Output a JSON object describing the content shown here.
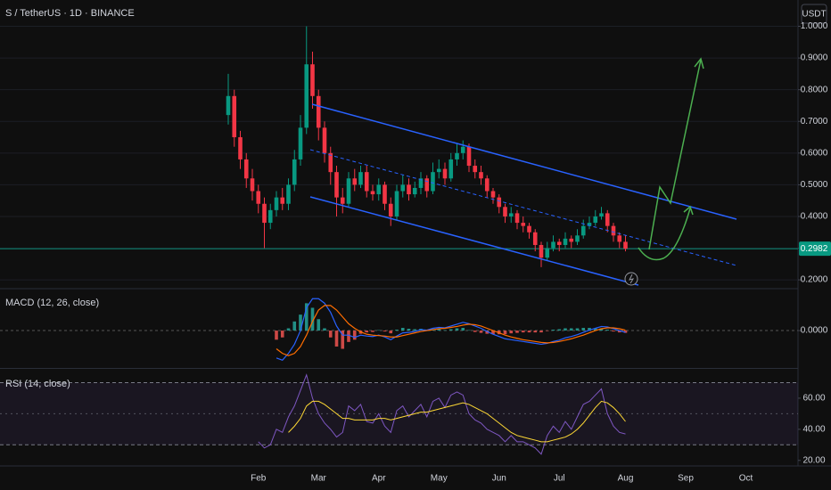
{
  "chart_data": [
    {
      "type": "candlestick",
      "title": "S / TetherUS · 1D · BINANCE",
      "currency": "USDT",
      "categories": [
        null,
        null,
        null,
        null,
        null,
        "Feb",
        null,
        null,
        null,
        null,
        null,
        null,
        null,
        null,
        null,
        "Mar",
        null,
        null,
        null,
        null,
        null,
        null,
        null,
        null,
        null,
        "Apr",
        null,
        null,
        null,
        null,
        null,
        null,
        null,
        null,
        null,
        "May",
        null,
        null,
        null,
        null,
        null,
        null,
        null,
        null,
        null,
        "Jun",
        null,
        null,
        null,
        null,
        null,
        null,
        null,
        null,
        null,
        "Jul",
        null,
        null,
        null,
        null,
        null,
        null,
        null,
        null,
        null,
        null,
        "Aug",
        null,
        null,
        null,
        null,
        null,
        null,
        null,
        null,
        null,
        "Sep",
        null,
        null,
        null,
        null,
        null,
        null,
        null,
        null,
        null,
        "Oct",
        null,
        null
      ],
      "open": [
        0.72,
        0.78,
        0.65,
        0.58,
        0.52,
        0.48,
        0.44,
        0.38,
        0.42,
        0.46,
        0.44,
        0.5,
        0.58,
        0.68,
        0.88,
        0.78,
        0.68,
        0.6,
        0.54,
        0.46,
        0.44,
        0.52,
        0.5,
        0.54,
        0.48,
        0.47,
        0.5,
        0.44,
        0.4,
        0.48,
        0.5,
        0.47,
        0.49,
        0.52,
        0.48,
        0.54,
        0.55,
        0.52,
        0.58,
        0.6,
        0.62,
        0.56,
        0.54,
        0.52,
        0.48,
        0.46,
        0.43,
        0.4,
        0.41,
        0.38,
        0.37,
        0.35,
        0.31,
        0.27,
        0.3,
        0.32,
        0.31,
        0.33,
        0.32,
        0.34,
        0.37,
        0.38,
        0.4,
        0.41,
        0.37,
        0.34,
        0.32,
        null,
        null,
        null,
        null,
        null,
        null,
        null,
        null,
        null,
        null,
        null,
        null,
        null,
        null,
        null,
        null,
        null,
        null,
        null,
        null,
        null,
        null
      ],
      "high": [
        0.85,
        0.8,
        0.67,
        0.6,
        0.55,
        0.5,
        0.46,
        0.44,
        0.48,
        0.49,
        0.52,
        0.61,
        0.72,
        1.0,
        0.92,
        0.8,
        0.7,
        0.62,
        0.56,
        0.49,
        0.54,
        0.55,
        0.56,
        0.56,
        0.5,
        0.52,
        0.51,
        0.46,
        0.5,
        0.53,
        0.52,
        0.51,
        0.54,
        0.53,
        0.57,
        0.58,
        0.57,
        0.6,
        0.63,
        0.64,
        0.63,
        0.58,
        0.56,
        0.53,
        0.49,
        0.47,
        0.44,
        0.43,
        0.42,
        0.4,
        0.38,
        0.36,
        0.32,
        0.32,
        0.34,
        0.33,
        0.35,
        0.34,
        0.36,
        0.39,
        0.4,
        0.42,
        0.43,
        0.42,
        0.38,
        0.35,
        0.34,
        null,
        null,
        null,
        null,
        null,
        null,
        null,
        null,
        null,
        null,
        null,
        null,
        null,
        null,
        null,
        null,
        null,
        null,
        null,
        null,
        null,
        null
      ],
      "low": [
        0.69,
        0.62,
        0.55,
        0.49,
        0.45,
        0.41,
        0.3,
        0.36,
        0.4,
        0.42,
        0.42,
        0.48,
        0.56,
        0.66,
        0.74,
        0.64,
        0.57,
        0.5,
        0.4,
        0.41,
        0.43,
        0.48,
        0.49,
        0.46,
        0.45,
        0.45,
        0.42,
        0.37,
        0.39,
        0.46,
        0.45,
        0.46,
        0.47,
        0.46,
        0.47,
        0.52,
        0.5,
        0.51,
        0.56,
        0.58,
        0.54,
        0.52,
        0.5,
        0.46,
        0.44,
        0.41,
        0.38,
        0.38,
        0.36,
        0.35,
        0.33,
        0.29,
        0.24,
        0.26,
        0.29,
        0.29,
        0.3,
        0.3,
        0.31,
        0.33,
        0.36,
        0.37,
        0.39,
        0.35,
        0.32,
        0.3,
        0.29,
        null,
        null,
        null,
        null,
        null,
        null,
        null,
        null,
        null,
        null,
        null,
        null,
        null,
        null,
        null,
        null,
        null,
        null,
        null,
        null,
        null,
        null
      ],
      "close": [
        0.78,
        0.65,
        0.58,
        0.52,
        0.48,
        0.44,
        0.38,
        0.42,
        0.46,
        0.44,
        0.5,
        0.58,
        0.68,
        0.88,
        0.78,
        0.68,
        0.6,
        0.54,
        0.46,
        0.44,
        0.52,
        0.5,
        0.54,
        0.48,
        0.47,
        0.5,
        0.44,
        0.4,
        0.48,
        0.5,
        0.47,
        0.49,
        0.52,
        0.48,
        0.54,
        0.55,
        0.52,
        0.58,
        0.6,
        0.62,
        0.56,
        0.54,
        0.52,
        0.48,
        0.46,
        0.43,
        0.4,
        0.41,
        0.38,
        0.37,
        0.35,
        0.31,
        0.27,
        0.3,
        0.32,
        0.31,
        0.33,
        0.32,
        0.34,
        0.37,
        0.38,
        0.4,
        0.41,
        0.37,
        0.34,
        0.32,
        0.2982,
        null,
        null,
        null,
        null,
        null,
        null,
        null,
        null,
        null,
        null,
        null,
        null,
        null,
        null,
        null,
        null,
        null,
        null,
        null,
        null,
        null,
        null
      ],
      "up_color": "#089981",
      "down_color": "#f23645",
      "ylim": [
        0.175,
        1.083
      ],
      "yticks": [
        {
          "value": 0.2,
          "label": "0.2000"
        },
        {
          "value": 0.3,
          "label": "0.3000"
        },
        {
          "value": 0.4,
          "label": "0.4000"
        },
        {
          "value": 0.5,
          "label": "0.5000"
        },
        {
          "value": 0.6,
          "label": "0.6000"
        },
        {
          "value": 0.7,
          "label": "0.7000"
        },
        {
          "value": 0.8,
          "label": "0.8000"
        },
        {
          "value": 0.9,
          "label": "0.9000"
        },
        {
          "value": 1.0,
          "label": "1.0000"
        }
      ],
      "last_price": 0.2982
    },
    {
      "type": "macd",
      "title": "MACD (12, 26, close)",
      "macd": [
        null,
        null,
        null,
        null,
        null,
        null,
        null,
        null,
        -0.06,
        -0.065,
        -0.05,
        -0.03,
        0.0,
        0.05,
        0.07,
        0.07,
        0.06,
        0.04,
        0.01,
        -0.01,
        -0.01,
        -0.015,
        -0.01,
        -0.012,
        -0.013,
        -0.01,
        -0.014,
        -0.02,
        -0.012,
        -0.005,
        -0.004,
        -0.002,
        0.002,
        0.001,
        0.005,
        0.007,
        0.006,
        0.01,
        0.014,
        0.018,
        0.015,
        0.01,
        0.005,
        -0.002,
        -0.008,
        -0.013,
        -0.018,
        -0.02,
        -0.022,
        -0.024,
        -0.026,
        -0.028,
        -0.03,
        -0.028,
        -0.024,
        -0.021,
        -0.016,
        -0.013,
        -0.009,
        -0.004,
        0.001,
        0.005,
        0.009,
        0.008,
        0.004,
        0.0,
        -0.004,
        null,
        null,
        null,
        null,
        null,
        null,
        null,
        null,
        null,
        null,
        null,
        null,
        null,
        null,
        null,
        null,
        null,
        null,
        null,
        null,
        null,
        null
      ],
      "signal": [
        null,
        null,
        null,
        null,
        null,
        null,
        null,
        null,
        -0.04,
        -0.05,
        -0.055,
        -0.05,
        -0.035,
        -0.01,
        0.02,
        0.045,
        0.055,
        0.055,
        0.045,
        0.03,
        0.015,
        0.005,
        -0.003,
        -0.008,
        -0.01,
        -0.011,
        -0.012,
        -0.014,
        -0.014,
        -0.011,
        -0.008,
        -0.005,
        -0.002,
        0.0,
        0.002,
        0.004,
        0.005,
        0.007,
        0.009,
        0.012,
        0.014,
        0.013,
        0.01,
        0.005,
        0.0,
        -0.005,
        -0.01,
        -0.014,
        -0.017,
        -0.02,
        -0.022,
        -0.024,
        -0.026,
        -0.027,
        -0.026,
        -0.024,
        -0.021,
        -0.018,
        -0.014,
        -0.01,
        -0.005,
        0.0,
        0.004,
        0.006,
        0.006,
        0.004,
        0.001,
        null,
        null,
        null,
        null,
        null,
        null,
        null,
        null,
        null,
        null,
        null,
        null,
        null,
        null,
        null,
        null,
        null,
        null,
        null,
        null,
        null,
        null
      ],
      "histogram": [
        null,
        null,
        null,
        null,
        null,
        null,
        null,
        null,
        -0.02,
        -0.015,
        0.005,
        0.02,
        0.035,
        0.06,
        0.05,
        0.025,
        0.005,
        -0.015,
        -0.035,
        -0.04,
        -0.025,
        -0.02,
        -0.007,
        -0.004,
        -0.003,
        0.001,
        -0.002,
        -0.006,
        0.002,
        0.006,
        0.004,
        0.003,
        0.004,
        0.001,
        0.003,
        0.003,
        0.001,
        0.003,
        0.005,
        0.006,
        0.001,
        -0.003,
        -0.005,
        -0.007,
        -0.008,
        -0.008,
        -0.008,
        -0.006,
        -0.005,
        -0.004,
        -0.004,
        -0.004,
        -0.004,
        -0.001,
        0.002,
        0.003,
        0.005,
        0.005,
        0.005,
        0.006,
        0.006,
        0.005,
        0.005,
        0.002,
        -0.002,
        -0.004,
        -0.005,
        null,
        null,
        null,
        null,
        null,
        null,
        null,
        null,
        null,
        null,
        null,
        null,
        null,
        null,
        null,
        null,
        null,
        null,
        null,
        null,
        null,
        null
      ],
      "macd_color": "#2962ff",
      "signal_color": "#ff6d00",
      "up_color": "#26a69a",
      "down_color": "#ef5350",
      "ylim": [
        -0.08,
        0.09
      ],
      "yticks": [
        {
          "value": 0,
          "label": "0.0000"
        }
      ]
    },
    {
      "type": "rsi",
      "title": "RSI (14, close)",
      "values": [
        null,
        null,
        null,
        null,
        null,
        32,
        28,
        30,
        40,
        38,
        48,
        55,
        65,
        75,
        60,
        50,
        44,
        40,
        35,
        38,
        55,
        52,
        56,
        45,
        44,
        50,
        42,
        38,
        52,
        55,
        48,
        52,
        56,
        48,
        58,
        60,
        54,
        62,
        64,
        62,
        50,
        46,
        44,
        40,
        38,
        36,
        32,
        36,
        32,
        32,
        30,
        28,
        24,
        36,
        42,
        38,
        45,
        40,
        48,
        56,
        58,
        62,
        66,
        50,
        42,
        38,
        37,
        null,
        null,
        null,
        null,
        null,
        null,
        null,
        null,
        null,
        null,
        null,
        null,
        null,
        null,
        null,
        null,
        null,
        null,
        null,
        null,
        null,
        null
      ],
      "ma": [
        null,
        null,
        null,
        null,
        null,
        null,
        null,
        null,
        null,
        null,
        38,
        42,
        47,
        55,
        58,
        58,
        56,
        53,
        50,
        47,
        47,
        46,
        46,
        46,
        46,
        47,
        47,
        46,
        47,
        48,
        49,
        50,
        51,
        51,
        52,
        53,
        54,
        55,
        56,
        57,
        56,
        54,
        52,
        50,
        47,
        44,
        41,
        38,
        36,
        35,
        34,
        33,
        32,
        32,
        33,
        34,
        35,
        37,
        40,
        44,
        49,
        54,
        58,
        57,
        54,
        50,
        45,
        null,
        null,
        null,
        null,
        null,
        null,
        null,
        null,
        null,
        null,
        null,
        null,
        null,
        null,
        null,
        null,
        null,
        null,
        null,
        null,
        null,
        null
      ],
      "color": "#7e57c2",
      "ma_color": "#fdd835",
      "ylim": [
        17,
        78.3
      ],
      "yticks": [
        {
          "value": 20,
          "label": "20.00"
        },
        {
          "value": 40,
          "label": "40.00"
        },
        {
          "value": 60,
          "label": "60.00"
        }
      ],
      "bands": [
        30,
        70
      ],
      "midline": 50
    }
  ]
}
